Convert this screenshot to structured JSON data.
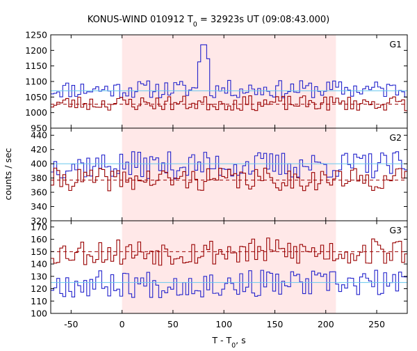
{
  "chart_data": {
    "type": "line",
    "title": {
      "prefix": "KONUS-WIND 010912 T",
      "sub": "0",
      "suffix": " = 32923s UT (09:08:43.000)"
    },
    "xlabel": {
      "prefix": "T - T",
      "sub": "0",
      "suffix": ", s"
    },
    "ylabel": "counts / sec",
    "xlim": [
      -70,
      280
    ],
    "xticks": [
      -50,
      0,
      50,
      100,
      150,
      200,
      250
    ],
    "shaded_interval": [
      0,
      210
    ],
    "colors": {
      "blue": "#2222cc",
      "red": "#990000",
      "shade": "#ffe8e8",
      "bg_fit": "#66c8ee",
      "bg_fit_red": "#ee66aa"
    },
    "bin_width": 2.944,
    "panels": [
      {
        "label": "G1",
        "ylim": [
          950,
          1250
        ],
        "yticks": [
          950,
          1000,
          1050,
          1100,
          1150,
          1200,
          1250
        ],
        "series": [
          {
            "color": "blue",
            "step_base": 1075,
            "step_amp": 18,
            "seed": 11,
            "peak": {
              "x": 79,
              "value": 1218
            }
          },
          {
            "color": "red",
            "step_base": 1030,
            "step_amp": 15,
            "seed": 23
          }
        ],
        "background_levels": [
          {
            "color": "blue",
            "value": 1070,
            "from": -70,
            "to": 280
          },
          {
            "color": "red",
            "value": 1027,
            "from": -70,
            "to": 280
          }
        ]
      },
      {
        "label": "G2",
        "ylim": [
          320,
          450
        ],
        "yticks": [
          320,
          340,
          360,
          380,
          400,
          420,
          440
        ],
        "series": [
          {
            "color": "blue",
            "step_base": 398,
            "step_amp": 12,
            "seed": 37
          },
          {
            "color": "red",
            "step_base": 378,
            "step_amp": 10,
            "seed": 41
          }
        ],
        "background_levels": [
          {
            "color": "blue",
            "value": 400,
            "from": -70,
            "to": 280
          },
          {
            "color": "red",
            "value": 377,
            "from": -70,
            "to": 280
          }
        ]
      },
      {
        "label": "G3",
        "ylim": [
          100,
          175
        ],
        "yticks": [
          100,
          110,
          120,
          130,
          140,
          150,
          160,
          170
        ],
        "series": [
          {
            "color": "red",
            "step_base": 150,
            "step_amp": 7,
            "seed": 53
          },
          {
            "color": "blue",
            "step_base": 124,
            "step_amp": 7,
            "seed": 67
          }
        ],
        "background_levels": [
          {
            "color": "red",
            "value": 150,
            "from": -70,
            "to": 280
          },
          {
            "color": "blue",
            "value": 125,
            "from": -70,
            "to": 280
          }
        ]
      }
    ]
  }
}
